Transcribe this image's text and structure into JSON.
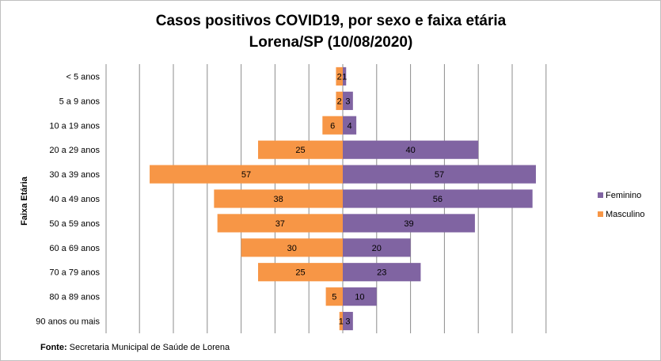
{
  "chart_data": {
    "type": "bar",
    "orientation": "horizontal",
    "layout": "population-pyramid",
    "title": [
      "Casos positivos  COVID19, por sexo e faixa etária",
      "Lorena/SP (10/08/2020)"
    ],
    "ylabel": "Faixa Etária",
    "categories": [
      "< 5 anos",
      "5 a 9 anos",
      "10 a 19 anos",
      "20 a 29 anos",
      "30 a 39 anos",
      "40 a 49 anos",
      "50 a 59 anos",
      "60 a 69 anos",
      "70 a 79 anos",
      "80 a 89 anos",
      "90 anos ou mais"
    ],
    "series": [
      {
        "name": "Feminino",
        "values": [
          1,
          3,
          4,
          40,
          57,
          56,
          39,
          20,
          23,
          10,
          3
        ],
        "color": "#8064a2",
        "side": "right"
      },
      {
        "name": "Masculino",
        "values": [
          2,
          2,
          6,
          25,
          57,
          38,
          37,
          30,
          25,
          5,
          1
        ],
        "color": "#f79646",
        "side": "left"
      }
    ],
    "xlim": [
      -60,
      60
    ],
    "grid": true,
    "legend": "right"
  },
  "source": {
    "label": "Fonte:",
    "text": "Secretaria Municipal de Saúde de Lorena"
  }
}
